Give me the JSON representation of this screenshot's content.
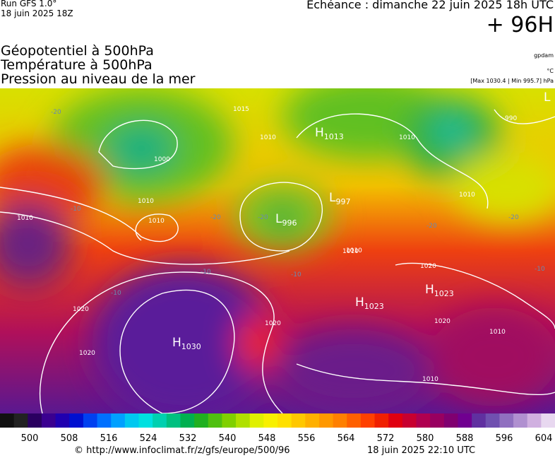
{
  "header": {
    "run": "Run GFS 1.0°",
    "run_time": "18 juin 2025 18Z",
    "forecast": "Echéance : dimanche 22 juin 2025 18h UTC",
    "lead": "+ 96H"
  },
  "titles": [
    "Géopotentiel à 500hPa",
    "Température à 500hPa",
    "Pression au niveau de la mer"
  ],
  "units": [
    "gpdam",
    "°C",
    "[Max 1030.4 | Min 995.7] hPa"
  ],
  "map": {
    "centers": [
      {
        "kind": "H",
        "value": "1013"
      },
      {
        "kind": "H",
        "value": "1030"
      },
      {
        "kind": "L",
        "value": "996"
      },
      {
        "kind": "L",
        "value": "997"
      },
      {
        "kind": "H",
        "value": "1023"
      },
      {
        "kind": "H",
        "value": "1023"
      },
      {
        "kind": "L",
        "value": null
      }
    ],
    "isobars": [
      "1015",
      "1000",
      "1010",
      "1010",
      "1010",
      "1010",
      "1010",
      "1010",
      "990",
      "1010",
      "1020",
      "1020",
      "1020",
      "1020",
      "1010",
      "1010",
      "1010",
      "1020"
    ],
    "isotherms": [
      "-20",
      "-20",
      "-20",
      "-20",
      "-20",
      "-10",
      "-10",
      "-10",
      "-10",
      "-10"
    ]
  },
  "colorbar": {
    "labels": [
      "500",
      "508",
      "516",
      "524",
      "532",
      "540",
      "548",
      "556",
      "564",
      "572",
      "580",
      "588",
      "596",
      "604"
    ]
  },
  "footer": {
    "url": "© http://www.infoclimat.fr/z/gfs/europe/500/96",
    "generated": "18 juin 2025 22:10 UTC"
  }
}
